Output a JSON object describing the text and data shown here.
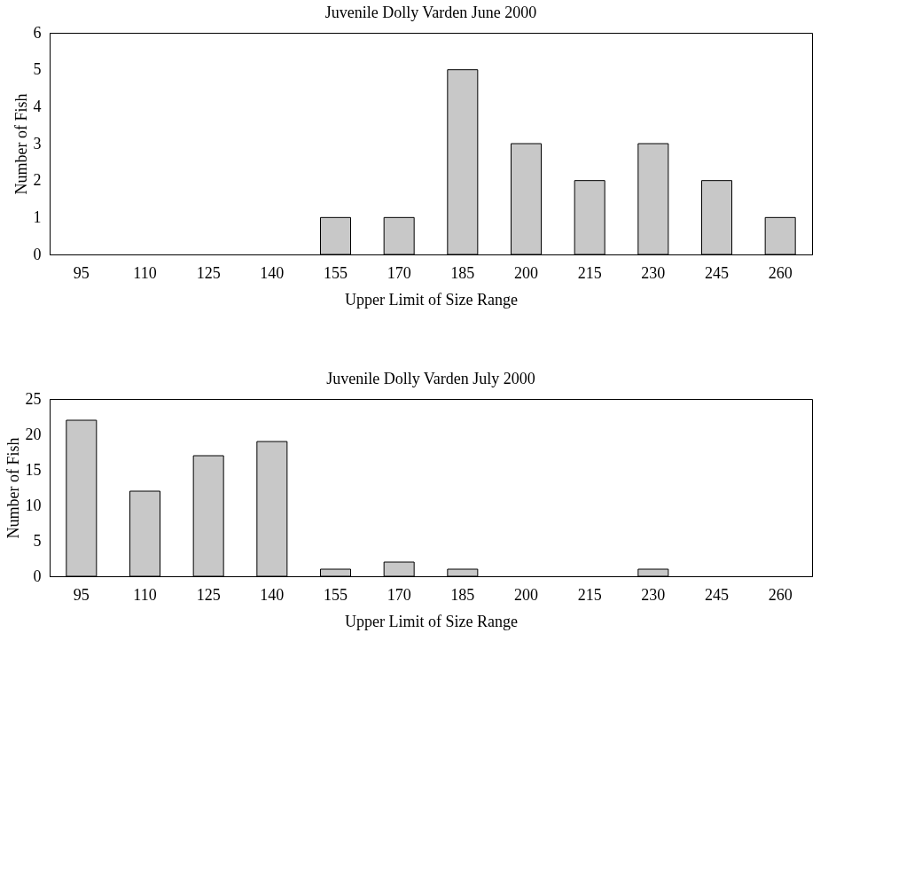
{
  "chart_data": [
    {
      "type": "bar",
      "title": "Juvenile Dolly Varden June 2000",
      "xlabel": "Upper Limit of Size Range",
      "ylabel": "Number of Fish",
      "categories": [
        "95",
        "110",
        "125",
        "140",
        "155",
        "170",
        "185",
        "200",
        "215",
        "230",
        "245",
        "260"
      ],
      "values": [
        0,
        0,
        0,
        0,
        1,
        1,
        5,
        3,
        2,
        3,
        2,
        1
      ],
      "color": "#c8c8c8",
      "ylim": [
        0,
        6
      ],
      "yticks": [
        0,
        1,
        2,
        3,
        4,
        5,
        6
      ],
      "grid": false,
      "legend": false
    },
    {
      "type": "bar",
      "title": "Juvenile Dolly Varden July 2000",
      "xlabel": "Upper Limit of Size Range",
      "ylabel": "Number of Fish",
      "categories": [
        "95",
        "110",
        "125",
        "140",
        "155",
        "170",
        "185",
        "200",
        "215",
        "230",
        "245",
        "260"
      ],
      "values": [
        22,
        12,
        17,
        19,
        1,
        2,
        1,
        0,
        0,
        1,
        0,
        0
      ],
      "color": "#c8c8c8",
      "ylim": [
        0,
        25
      ],
      "yticks": [
        0,
        5,
        10,
        15,
        20,
        25
      ],
      "grid": false,
      "legend": false
    }
  ]
}
